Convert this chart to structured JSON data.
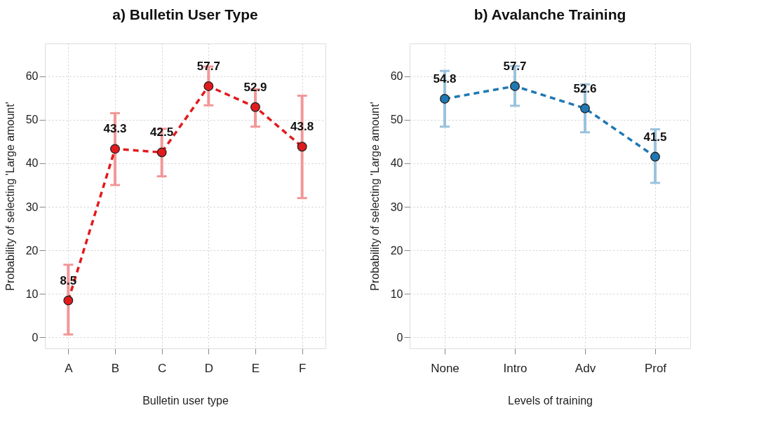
{
  "chart_data": [
    {
      "type": "line",
      "title": "a) Bulletin User Type",
      "xlabel": "Bulletin user type",
      "ylabel": "Probability of selecting 'Large amount'",
      "categories": [
        "A",
        "B",
        "C",
        "D",
        "E",
        "F"
      ],
      "series": [
        {
          "color": "#e31a1c",
          "values": [
            8.5,
            43.3,
            42.5,
            57.7,
            52.9,
            43.8
          ],
          "errors": [
            [
              0.7,
              16.7
            ],
            [
              35.0,
              51.5
            ],
            [
              37.0,
              47.9
            ],
            [
              53.3,
              62.2
            ],
            [
              48.4,
              57.0
            ],
            [
              32.0,
              55.5
            ]
          ]
        }
      ],
      "ylim": [
        -2.5,
        67.5
      ],
      "yticks": [
        0,
        10,
        20,
        30,
        40,
        50,
        60
      ],
      "grid": true,
      "marker": "circle",
      "line_style": "dashed",
      "data_labels": true
    },
    {
      "type": "line",
      "title": "b) Avalanche Training",
      "xlabel": "Levels of training",
      "ylabel": "Probability of selecting 'Large amount'",
      "categories": [
        "None",
        "Intro",
        "Adv",
        "Prof"
      ],
      "series": [
        {
          "color": "#1f78b4",
          "values": [
            54.8,
            57.7,
            52.6,
            41.5
          ],
          "errors": [
            [
              48.4,
              61.2
            ],
            [
              53.2,
              62.3
            ],
            [
              47.1,
              58.1
            ],
            [
              35.5,
              47.8
            ]
          ]
        }
      ],
      "ylim": [
        -2.5,
        67.5
      ],
      "yticks": [
        0,
        10,
        20,
        30,
        40,
        50,
        60
      ],
      "grid": true,
      "marker": "circle",
      "line_style": "dashed",
      "data_labels": true
    }
  ]
}
